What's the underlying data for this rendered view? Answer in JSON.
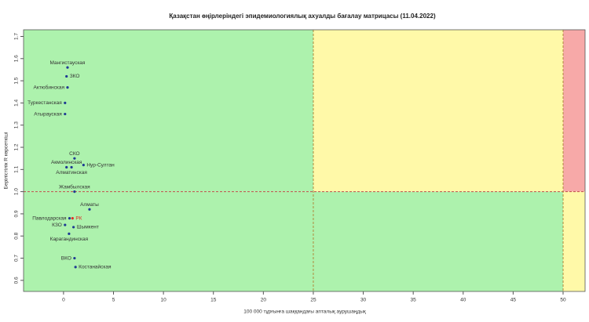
{
  "chart_data": {
    "type": "scatter",
    "title": "Қазақстан өңірлеріндегі эпидемиологиялық ахуалды бағалау матрицасы  (11.04.2022)",
    "x_label": "100 000 тұрғынға шаққандағы апталық аурушаңдық",
    "y_label": "Берілістілік R көрсеткіші",
    "labels": [
      "Мангистауская",
      "ЗКО",
      "Актюбинская",
      "Туркестанская",
      "Атырауская",
      "СКО",
      "Нур-Султан",
      "Акмолинская",
      "Алматинская",
      "Жамбылская",
      "Алматы",
      "Павлодарская",
      "РК",
      "КЗО",
      "Шымкент",
      "Карагандинская",
      "ВКО",
      "Костанайская"
    ],
    "x": [
      0.4,
      0.3,
      0.4,
      0.15,
      0.15,
      1.1,
      2.0,
      0.3,
      0.8,
      1.1,
      2.6,
      0.6,
      0.9,
      0.15,
      1.0,
      0.55,
      1.1,
      1.2
    ],
    "values": [
      1.56,
      1.52,
      1.47,
      1.4,
      1.35,
      1.15,
      1.12,
      1.11,
      1.11,
      1.0,
      0.92,
      0.88,
      0.88,
      0.85,
      0.84,
      0.81,
      0.7,
      0.66
    ],
    "colors": [
      "#1f3a93",
      "#1f3a93",
      "#1f3a93",
      "#1f3a93",
      "#1f3a93",
      "#1f3a93",
      "#1f3a93",
      "#1f3a93",
      "#1f3a93",
      "#1f3a93",
      "#1f3a93",
      "#1f3a93",
      "#e0302a",
      "#1f3a93",
      "#1f3a93",
      "#1f3a93",
      "#1f3a93",
      "#1f3a93"
    ],
    "x_thresholds": [
      25,
      50
    ],
    "y_threshold": 1,
    "zone_colors": {
      "green": "#adf2ad",
      "yellow": "#fff9a8",
      "red": "#f7a9a8"
    },
    "xlim": [
      -4,
      52.2
    ],
    "ylim": [
      0.55,
      1.73
    ],
    "xticks": [
      0,
      5,
      10,
      15,
      20,
      25,
      30,
      35,
      40,
      45,
      50
    ],
    "yticks": [
      0.6,
      0.7,
      0.8,
      0.9,
      {
        "value": 1,
        "label": "1.0"
      },
      1.1,
      1.2,
      1.3,
      1.4,
      1.5,
      1.6,
      1.7
    ]
  }
}
